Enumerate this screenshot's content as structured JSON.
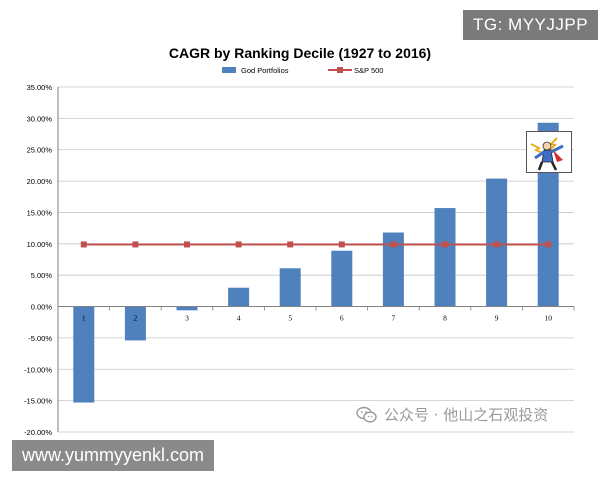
{
  "watermarks": {
    "tg": "TG: MYYJJPP",
    "site": "www.yummyyenkl.com",
    "wechat": "公众号 · 他山之石观投资"
  },
  "colors": {
    "bar": "#4f81bd",
    "line": "#c0504d",
    "grid": "#c8c8c8",
    "axis": "#808080",
    "text": "#000000"
  },
  "chart_data": {
    "type": "bar",
    "title": "CAGR by Ranking Decile (1927 to 2016)",
    "xlabel": "",
    "ylabel": "",
    "categories": [
      "1",
      "2",
      "3",
      "4",
      "5",
      "6",
      "7",
      "8",
      "9",
      "10"
    ],
    "series": [
      {
        "name": "God Portfolios",
        "type": "bar",
        "values": [
          -15.3,
          -5.4,
          -0.6,
          3.0,
          6.1,
          8.9,
          11.8,
          15.7,
          20.4,
          29.3
        ]
      },
      {
        "name": "S&P 500",
        "type": "line",
        "marker": "square",
        "values": [
          9.9,
          9.9,
          9.9,
          9.9,
          9.9,
          9.9,
          9.9,
          9.9,
          9.9,
          9.9
        ]
      }
    ],
    "ylim": [
      -20,
      35
    ],
    "yticks": [
      35,
      30,
      25,
      20,
      15,
      10,
      5,
      0,
      -5,
      -10,
      -15,
      -20
    ],
    "ytick_labels": [
      "35.00%",
      "30.00%",
      "25.00%",
      "20.00%",
      "15.00%",
      "10.00%",
      "5.00%",
      "0.00%",
      "-5.00%",
      "-10.00%",
      "-15.00%",
      "-20.00%"
    ],
    "grid": true,
    "legend_position": "top-center"
  }
}
